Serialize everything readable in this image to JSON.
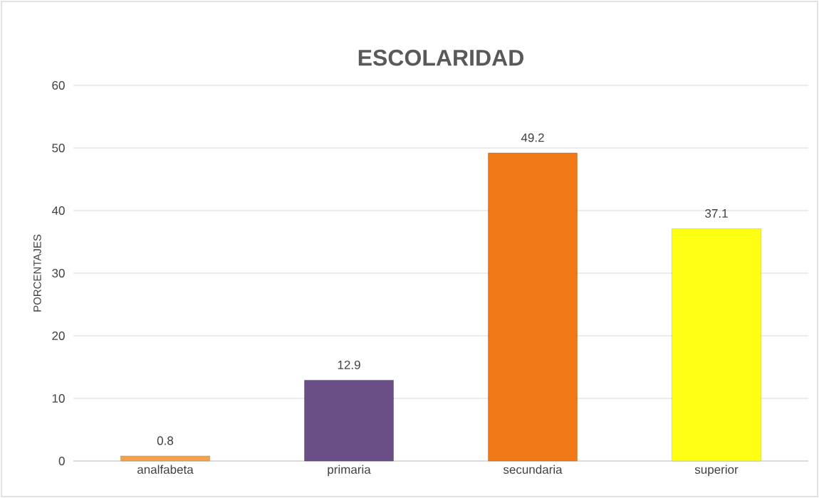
{
  "chart_data": {
    "type": "bar",
    "title": "ESCOLARIDAD",
    "ylabel": "PORCENTAJES",
    "categories": [
      "analfabeta",
      "primaria",
      "secundaria",
      "superior"
    ],
    "values": [
      0.8,
      12.9,
      49.2,
      37.1
    ],
    "colors": [
      "#f5a34a",
      "#6a4f86",
      "#f07816",
      "#ffff14"
    ],
    "ylim": [
      0,
      60
    ],
    "yticks": [
      0,
      10,
      20,
      30,
      40,
      50,
      60
    ],
    "grid": "y",
    "data_labels": true
  }
}
